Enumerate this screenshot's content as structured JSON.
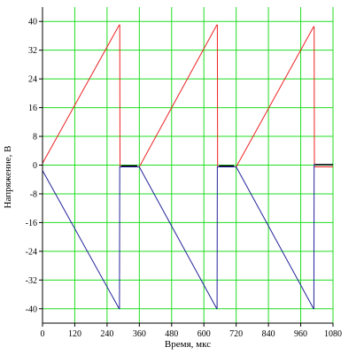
{
  "chart_data": {
    "type": "line",
    "xlabel": "Время, мкс",
    "ylabel": "Напряжение, В",
    "xlim": [
      0,
      1080
    ],
    "ylim": [
      -44,
      44
    ],
    "xticks": [
      0,
      120,
      240,
      360,
      480,
      600,
      720,
      840,
      960,
      1080
    ],
    "yticks": [
      40,
      32,
      24,
      16,
      8,
      0,
      -8,
      -16,
      -24,
      -32,
      -40
    ],
    "ytick_labels": [
      "40",
      "32",
      "24",
      "16",
      "8",
      "0",
      "-8",
      "-16",
      "-24",
      "-32",
      "-40"
    ],
    "grid": true,
    "colors": {
      "grid": "#22dd22",
      "axis": "#000000"
    },
    "series": [
      {
        "color": "#ee2222",
        "points": [
          [
            0,
            0.5
          ],
          [
            285,
            39
          ],
          [
            287,
            39
          ],
          [
            288,
            -0.5
          ],
          [
            360,
            -0.5
          ],
          [
            648,
            39
          ],
          [
            650,
            39
          ],
          [
            651,
            -0.5
          ],
          [
            720,
            -0.5
          ],
          [
            1008,
            38.5
          ],
          [
            1010,
            38.5
          ],
          [
            1011,
            -0.5
          ],
          [
            1080,
            -0.5
          ]
        ]
      },
      {
        "color": "#22229a",
        "points": [
          [
            0,
            -1.5
          ],
          [
            285,
            -40
          ],
          [
            286,
            -40
          ],
          [
            287,
            -0.5
          ],
          [
            360,
            -0.5
          ],
          [
            648,
            -40
          ],
          [
            649,
            -40
          ],
          [
            650,
            -0.5
          ],
          [
            720,
            -0.5
          ],
          [
            1008,
            -40
          ],
          [
            1009,
            -40
          ],
          [
            1010,
            0.2
          ],
          [
            1080,
            0.2
          ]
        ]
      },
      {
        "color": "#000000",
        "points": [
          [
            292,
            -0.2
          ],
          [
            352,
            -0.2
          ]
        ]
      },
      {
        "color": "#000000",
        "points": [
          [
            656,
            -0.2
          ],
          [
            712,
            -0.2
          ]
        ]
      },
      {
        "color": "#000000",
        "points": [
          [
            1014,
            0.1
          ],
          [
            1080,
            0.1
          ]
        ]
      }
    ]
  }
}
